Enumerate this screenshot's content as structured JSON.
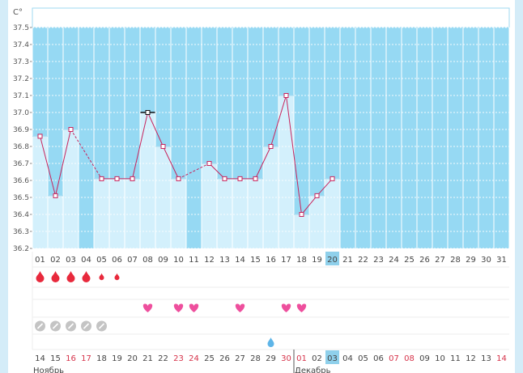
{
  "chart_data": {
    "type": "bar",
    "y_unit": "C°",
    "ylim": [
      36.2,
      37.5
    ],
    "yticks": [
      "37.5",
      "37.4",
      "37.3",
      "37.2",
      "37.1",
      "37.0",
      "36.9",
      "36.8",
      "36.7",
      "36.6",
      "36.5",
      "36.4",
      "36.3",
      "36.2"
    ],
    "grid": true,
    "cycle_days": [
      "01",
      "02",
      "03",
      "04",
      "05",
      "06",
      "07",
      "08",
      "09",
      "10",
      "11",
      "12",
      "13",
      "14",
      "15",
      "16",
      "17",
      "18",
      "19",
      "20",
      "21",
      "22",
      "23",
      "24",
      "25",
      "26",
      "27",
      "28",
      "29",
      "30",
      "31"
    ],
    "current_cycle_day": "20",
    "temperature": [
      36.86,
      36.51,
      36.9,
      null,
      36.61,
      36.61,
      36.61,
      37.0,
      36.8,
      36.61,
      null,
      36.7,
      36.61,
      36.61,
      36.61,
      36.8,
      37.1,
      36.4,
      36.51,
      36.61,
      null,
      null,
      null,
      null,
      null,
      null,
      null,
      null,
      null,
      null,
      null
    ],
    "highlight_point_day": "08",
    "menstruation_intensity": [
      3,
      3,
      3,
      3,
      1,
      1,
      0,
      0,
      0,
      0,
      0,
      0,
      0,
      0,
      0,
      0,
      0,
      0,
      0,
      0,
      0,
      0,
      0,
      0,
      0,
      0,
      0,
      0,
      0,
      0,
      0
    ],
    "intercourse_days": [
      "08",
      "10",
      "11",
      "14",
      "17",
      "18"
    ],
    "pill_days": [
      "01",
      "02",
      "03",
      "04",
      "05"
    ],
    "drop_days": [
      "16"
    ],
    "calendar_dates": [
      "14",
      "15",
      "16",
      "17",
      "18",
      "19",
      "20",
      "21",
      "22",
      "23",
      "24",
      "25",
      "26",
      "27",
      "28",
      "29",
      "30",
      "01",
      "02",
      "03",
      "04",
      "05",
      "06",
      "07",
      "08",
      "09",
      "10",
      "11",
      "12",
      "13",
      "14"
    ],
    "calendar_weekend": [
      false,
      false,
      true,
      true,
      false,
      false,
      false,
      false,
      false,
      true,
      true,
      false,
      false,
      false,
      false,
      false,
      true,
      true,
      false,
      false,
      false,
      false,
      false,
      true,
      true,
      false,
      false,
      false,
      false,
      false,
      true
    ],
    "today_calendar_index": 19,
    "month_labels": [
      {
        "label": "Ноябрь",
        "start_index": 0
      },
      {
        "label": "Декабрь",
        "start_index": 17
      }
    ],
    "colors": {
      "active_area": "#96d9f3",
      "bar_fill": "#d3f0fc",
      "line": "#c8245d",
      "blood": "#e8293c",
      "heart": "#ee4f9d",
      "pill": "#c4c4c4",
      "drop": "#5eb5e8",
      "today": "#8fd0eb"
    }
  }
}
